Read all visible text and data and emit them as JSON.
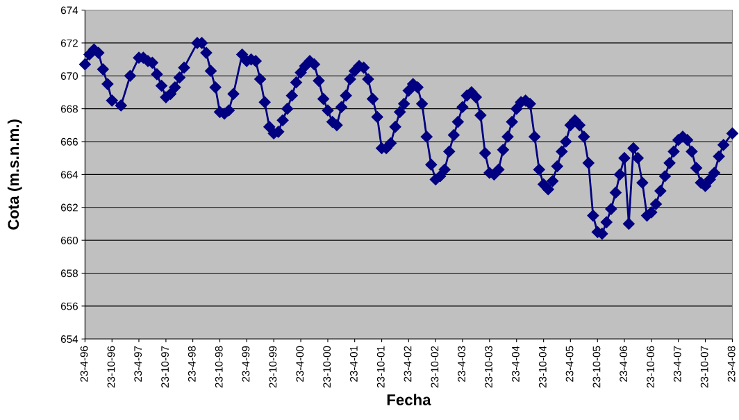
{
  "chart_data": {
    "type": "line",
    "xlabel": "Fecha",
    "ylabel": "Cota (m.s.n.m.)",
    "x": [
      "1996-04-23",
      "1996-05-23",
      "1996-06-23",
      "1996-07-23",
      "1996-08-23",
      "1996-09-23",
      "1996-10-23",
      "1996-12-23",
      "1997-02-23",
      "1997-04-23",
      "1997-05-23",
      "1997-06-23",
      "1997-07-23",
      "1997-08-23",
      "1997-09-23",
      "1997-10-23",
      "1997-11-23",
      "1997-12-23",
      "1998-01-23",
      "1998-02-23",
      "1998-05-23",
      "1998-06-23",
      "1998-07-23",
      "1998-08-23",
      "1998-09-23",
      "1998-10-23",
      "1998-11-23",
      "1998-12-23",
      "1999-01-23",
      "1999-03-23",
      "1999-04-23",
      "1999-05-23",
      "1999-06-23",
      "1999-07-23",
      "1999-08-23",
      "1999-09-23",
      "1999-10-23",
      "1999-11-23",
      "1999-12-23",
      "2000-01-23",
      "2000-02-23",
      "2000-03-23",
      "2000-04-23",
      "2000-05-23",
      "2000-06-23",
      "2000-07-23",
      "2000-08-23",
      "2000-09-23",
      "2000-10-23",
      "2000-11-23",
      "2000-12-23",
      "2001-01-23",
      "2001-02-23",
      "2001-03-23",
      "2001-04-23",
      "2001-05-23",
      "2001-06-23",
      "2001-07-23",
      "2001-08-23",
      "2001-09-23",
      "2001-10-23",
      "2001-11-23",
      "2001-12-23",
      "2002-01-23",
      "2002-02-23",
      "2002-03-23",
      "2002-04-23",
      "2002-05-23",
      "2002-06-23",
      "2002-07-23",
      "2002-08-23",
      "2002-09-23",
      "2002-10-23",
      "2002-11-23",
      "2002-12-23",
      "2003-01-23",
      "2003-02-23",
      "2003-03-23",
      "2003-04-23",
      "2003-05-23",
      "2003-06-23",
      "2003-07-23",
      "2003-08-23",
      "2003-09-23",
      "2003-10-23",
      "2003-11-23",
      "2003-12-23",
      "2004-01-23",
      "2004-02-23",
      "2004-03-23",
      "2004-04-23",
      "2004-05-23",
      "2004-06-23",
      "2004-07-23",
      "2004-08-23",
      "2004-09-23",
      "2004-10-23",
      "2004-11-23",
      "2004-12-23",
      "2005-01-23",
      "2005-02-23",
      "2005-03-23",
      "2005-04-23",
      "2005-05-23",
      "2005-06-23",
      "2005-07-23",
      "2005-08-23",
      "2005-09-23",
      "2005-10-23",
      "2005-11-23",
      "2005-12-23",
      "2006-01-23",
      "2006-02-23",
      "2006-03-23",
      "2006-04-23",
      "2006-05-23",
      "2006-06-23",
      "2006-07-23",
      "2006-08-23",
      "2006-09-23",
      "2006-10-23",
      "2006-11-23",
      "2006-12-23",
      "2007-01-23",
      "2007-02-23",
      "2007-03-23",
      "2007-04-23",
      "2007-05-23",
      "2007-06-23",
      "2007-07-23",
      "2007-08-23",
      "2007-09-23",
      "2007-10-23",
      "2007-11-23",
      "2007-12-23",
      "2008-01-23",
      "2008-02-23",
      "2008-04-23"
    ],
    "series": [
      {
        "color": "#000080",
        "values": [
          670.7,
          671.3,
          671.6,
          671.4,
          670.4,
          669.5,
          668.5,
          668.2,
          670.0,
          671.1,
          671.1,
          670.9,
          670.8,
          670.1,
          669.4,
          668.7,
          668.9,
          669.3,
          669.9,
          670.5,
          672.0,
          672.0,
          671.4,
          670.3,
          669.3,
          667.8,
          667.7,
          667.9,
          668.9,
          671.3,
          670.9,
          671.0,
          670.9,
          669.8,
          668.4,
          666.9,
          666.5,
          666.6,
          667.3,
          668.0,
          668.8,
          669.6,
          670.2,
          670.6,
          670.9,
          670.7,
          669.7,
          668.6,
          667.9,
          667.2,
          667.0,
          668.1,
          668.8,
          669.8,
          670.3,
          670.6,
          670.5,
          669.8,
          668.6,
          667.5,
          665.6,
          665.6,
          665.9,
          666.9,
          667.8,
          668.3,
          669.1,
          669.5,
          669.3,
          668.3,
          666.3,
          664.6,
          663.7,
          663.9,
          664.3,
          665.4,
          666.4,
          667.2,
          668.1,
          668.8,
          669.0,
          668.7,
          667.6,
          665.3,
          664.1,
          664.0,
          664.3,
          665.5,
          666.3,
          667.2,
          668.0,
          668.4,
          668.5,
          668.3,
          666.3,
          664.3,
          663.4,
          663.1,
          663.6,
          664.5,
          665.4,
          666.0,
          667.0,
          667.3,
          667.0,
          666.3,
          664.7,
          661.5,
          660.5,
          660.4,
          661.1,
          661.9,
          662.9,
          664.0,
          665.0,
          661.0,
          665.6,
          665.0,
          663.5,
          661.5,
          661.7,
          662.2,
          663.0,
          663.9,
          664.7,
          665.4,
          666.1,
          666.3,
          666.1,
          665.4,
          664.4,
          663.5,
          663.3,
          663.7,
          664.1,
          665.1,
          665.8,
          666.5
        ]
      }
    ],
    "xlim": [
      "1996-04-23",
      "2008-04-23"
    ],
    "xticks": [
      {
        "value": "1996-04-23",
        "label": "23-4-96"
      },
      {
        "value": "1996-10-23",
        "label": "23-10-96"
      },
      {
        "value": "1997-04-23",
        "label": "23-4-97"
      },
      {
        "value": "1997-10-23",
        "label": "23-10-97"
      },
      {
        "value": "1998-04-23",
        "label": "23-4-98"
      },
      {
        "value": "1998-10-23",
        "label": "23-10-98"
      },
      {
        "value": "1999-04-23",
        "label": "23-4-99"
      },
      {
        "value": "1999-10-23",
        "label": "23-10-99"
      },
      {
        "value": "2000-04-23",
        "label": "23-4-00"
      },
      {
        "value": "2000-10-23",
        "label": "23-10-00"
      },
      {
        "value": "2001-04-23",
        "label": "23-4-01"
      },
      {
        "value": "2001-10-23",
        "label": "23-10-01"
      },
      {
        "value": "2002-04-23",
        "label": "23-4-02"
      },
      {
        "value": "2002-10-23",
        "label": "23-10-02"
      },
      {
        "value": "2003-04-23",
        "label": "23-4-03"
      },
      {
        "value": "2003-10-23",
        "label": "23-10-03"
      },
      {
        "value": "2004-04-23",
        "label": "23-4-04"
      },
      {
        "value": "2004-10-23",
        "label": "23-10-04"
      },
      {
        "value": "2005-04-23",
        "label": "23-4-05"
      },
      {
        "value": "2005-10-23",
        "label": "23-10-05"
      },
      {
        "value": "2006-04-23",
        "label": "23-4-06"
      },
      {
        "value": "2006-10-23",
        "label": "23-10-06"
      },
      {
        "value": "2007-04-23",
        "label": "23-4-07"
      },
      {
        "value": "2007-10-23",
        "label": "23-10-07"
      },
      {
        "value": "2008-04-23",
        "label": "23-4-08"
      }
    ],
    "ylim": [
      654,
      674
    ],
    "yticks": [
      654,
      656,
      658,
      660,
      662,
      664,
      666,
      668,
      670,
      672,
      674
    ],
    "grid": "y",
    "marker": "diamond",
    "line_style": "solid"
  }
}
